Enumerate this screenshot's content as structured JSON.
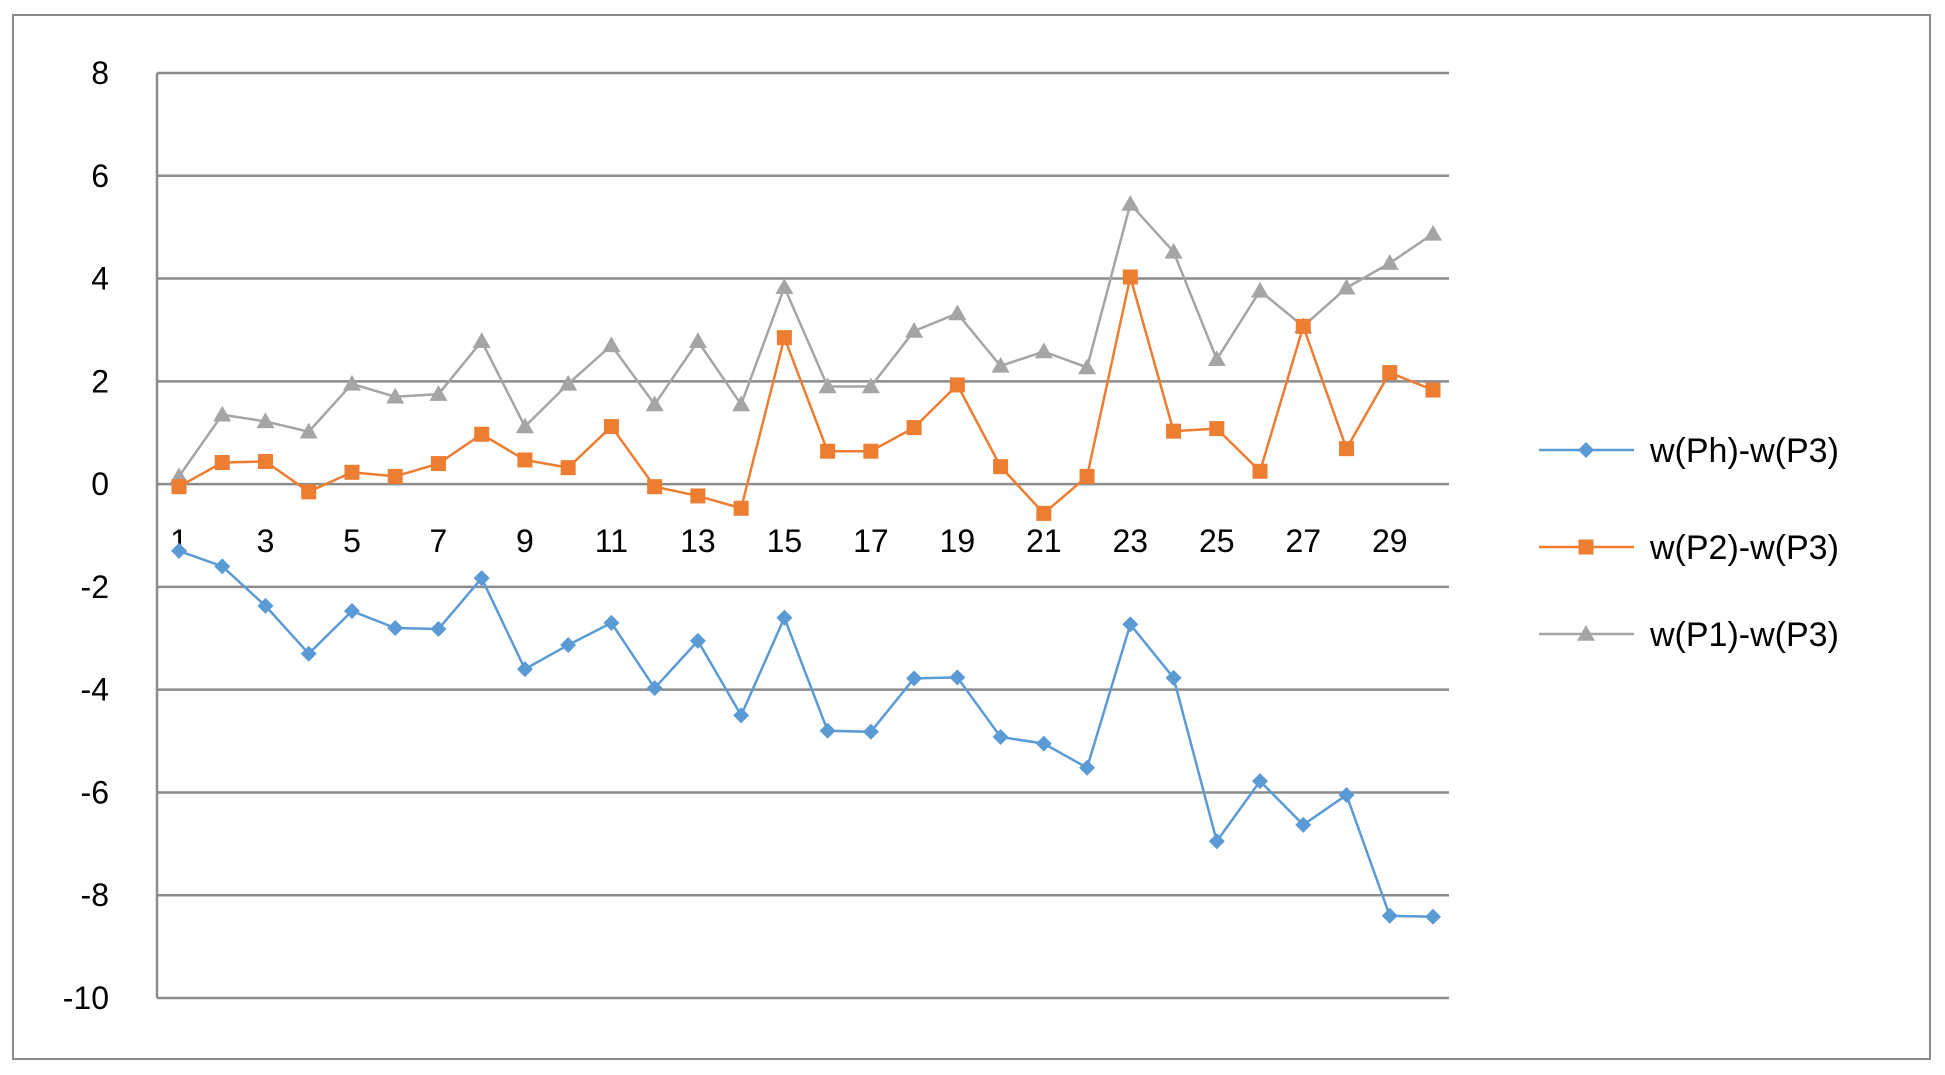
{
  "chart_data": {
    "type": "line",
    "x": [
      1,
      2,
      3,
      4,
      5,
      6,
      7,
      8,
      9,
      10,
      11,
      12,
      13,
      14,
      15,
      16,
      17,
      18,
      19,
      20,
      21,
      22,
      23,
      24,
      25,
      26,
      27,
      28,
      29,
      30
    ],
    "x_tick_labels": [
      "1",
      "3",
      "5",
      "7",
      "9",
      "11",
      "13",
      "15",
      "17",
      "19",
      "21",
      "23",
      "25",
      "27",
      "29"
    ],
    "y_tick_labels": [
      "8",
      "6",
      "4",
      "2",
      "0",
      "-2",
      "-4",
      "-6",
      "-8",
      "-10"
    ],
    "ylim": [
      -10,
      8
    ],
    "ystep": 2,
    "grid": "horizontal major gridlines",
    "legend_position": "right",
    "series": [
      {
        "name": "w(Ph)-w(P3)",
        "color": "#5b9bd5",
        "marker": "diamond",
        "values": [
          -1.3,
          -1.6,
          -2.37,
          -3.3,
          -2.47,
          -2.8,
          -2.82,
          -1.83,
          -3.6,
          -3.13,
          -2.7,
          -3.97,
          -3.05,
          -4.5,
          -2.6,
          -4.8,
          -4.82,
          -3.78,
          -3.76,
          -4.92,
          -5.05,
          -5.52,
          -2.73,
          -3.77,
          -6.95,
          -5.78,
          -6.63,
          -6.05,
          -8.4,
          -8.42
        ]
      },
      {
        "name": "w(P2)-w(P3)",
        "color": "#ed7d31",
        "marker": "square",
        "values": [
          -0.05,
          0.42,
          0.44,
          -0.15,
          0.23,
          0.15,
          0.4,
          0.97,
          0.47,
          0.32,
          1.12,
          -0.05,
          -0.23,
          -0.47,
          2.85,
          0.64,
          0.64,
          1.1,
          1.93,
          0.34,
          -0.57,
          0.15,
          4.03,
          1.03,
          1.08,
          0.25,
          3.07,
          0.69,
          2.17,
          1.83
        ]
      },
      {
        "name": "w(P1)-w(P3)",
        "color": "#a5a5a5",
        "marker": "triangle",
        "values": [
          0.15,
          1.35,
          1.22,
          1.02,
          1.95,
          1.7,
          1.75,
          2.78,
          1.12,
          1.95,
          2.7,
          1.55,
          2.78,
          1.55,
          3.83,
          1.9,
          1.9,
          2.98,
          3.32,
          2.3,
          2.58,
          2.27,
          5.45,
          4.52,
          2.43,
          3.76,
          3.07,
          3.82,
          4.3,
          4.87
        ]
      }
    ]
  }
}
